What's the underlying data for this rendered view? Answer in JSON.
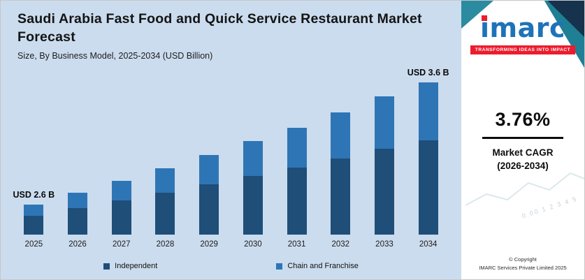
{
  "header": {
    "title": "Saudi Arabia Fast Food and Quick Service Restaurant Market Forecast",
    "subtitle": "Size, By Business Model, 2025-2034 (USD Billion)"
  },
  "chart_data": {
    "type": "bar",
    "stacked": true,
    "title": "Saudi Arabia Fast Food and Quick Service Restaurant Market Forecast",
    "subtitle": "Size, By Business Model, 2025-2034 (USD Billion)",
    "unit": "USD Billion",
    "xlabel": "",
    "ylabel": "",
    "legend_position": "bottom",
    "grid": false,
    "y_baseline_not_zero": true,
    "categories": [
      "2025",
      "2026",
      "2027",
      "2028",
      "2029",
      "2030",
      "2031",
      "2032",
      "2033",
      "2034"
    ],
    "series": [
      {
        "name": "Independent",
        "color": "#1f4e79",
        "values": [
          1.66,
          1.72,
          1.78,
          1.84,
          1.9,
          1.97,
          2.03,
          2.1,
          2.17,
          2.24
        ]
      },
      {
        "name": "Chain and Franchise",
        "color": "#2e75b6",
        "values": [
          0.94,
          0.98,
          1.02,
          1.06,
          1.11,
          1.16,
          1.21,
          1.27,
          1.33,
          1.38
        ]
      }
    ],
    "totals": [
      2.6,
      2.7,
      2.8,
      2.9,
      3.01,
      3.13,
      3.24,
      3.37,
      3.5,
      3.62
    ],
    "annotations": [
      {
        "category": "2025",
        "text": "USD 2.6 B"
      },
      {
        "category": "2034",
        "text": "USD 3.6 B"
      }
    ]
  },
  "sidebar": {
    "logo_text": "imarc",
    "tagline": "TRANSFORMING IDEAS INTO IMPACT",
    "cagr_value": "3.76%",
    "cagr_label": "Market CAGR",
    "cagr_period": "(2026-2034)",
    "copyright_line1": "© Copyright",
    "copyright_line2": "IMARC Services Private Limited 2025",
    "watermark_text": "0.00  1  2  3  4  5"
  },
  "colors": {
    "panel_bg": "#cbdcee",
    "brand_blue": "#1e73b8",
    "accent_red": "#ec1c2d",
    "teal": "#1f7f95",
    "navy": "#16324c",
    "bar_dark": "#1f4e79",
    "bar_light": "#2e75b6"
  }
}
